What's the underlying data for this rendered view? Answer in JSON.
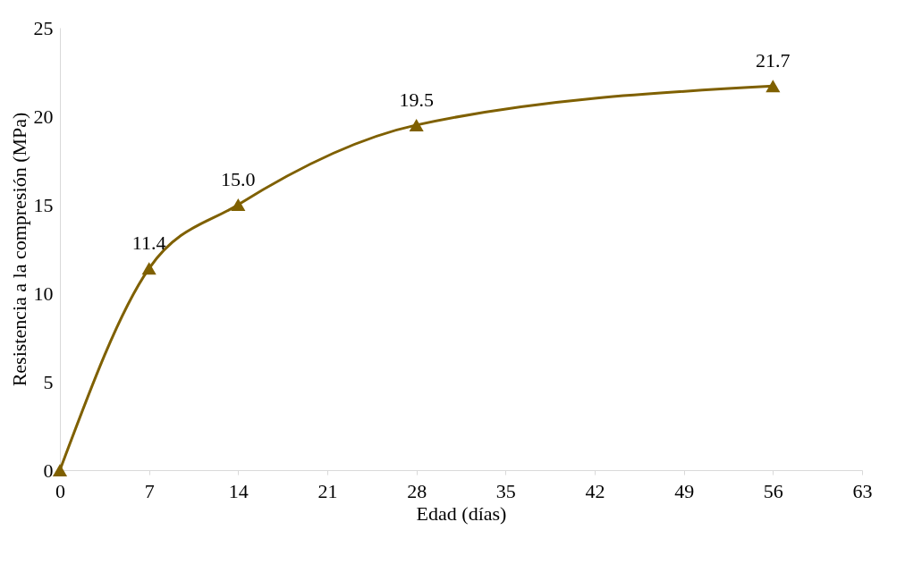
{
  "chart_data": {
    "type": "line",
    "xlabel": "Edad (días)",
    "ylabel": "Resistencia a la compresión (MPa)",
    "x": [
      0,
      7,
      14,
      28,
      56
    ],
    "series": [
      {
        "color": "#7f6000",
        "values": [
          0,
          11.4,
          15.0,
          19.5,
          21.7
        ],
        "value_labels": [
          null,
          "11.4",
          "15.0",
          "19.5",
          "21.7"
        ]
      }
    ],
    "xlim": [
      0,
      63
    ],
    "xticks": [
      0,
      7,
      14,
      21,
      28,
      35,
      42,
      49,
      56,
      63
    ],
    "ylim": [
      0,
      25
    ],
    "yticks": [
      0,
      5,
      10,
      15,
      20,
      25
    ],
    "grid": false,
    "marker": "triangle",
    "line_style": "solid"
  }
}
